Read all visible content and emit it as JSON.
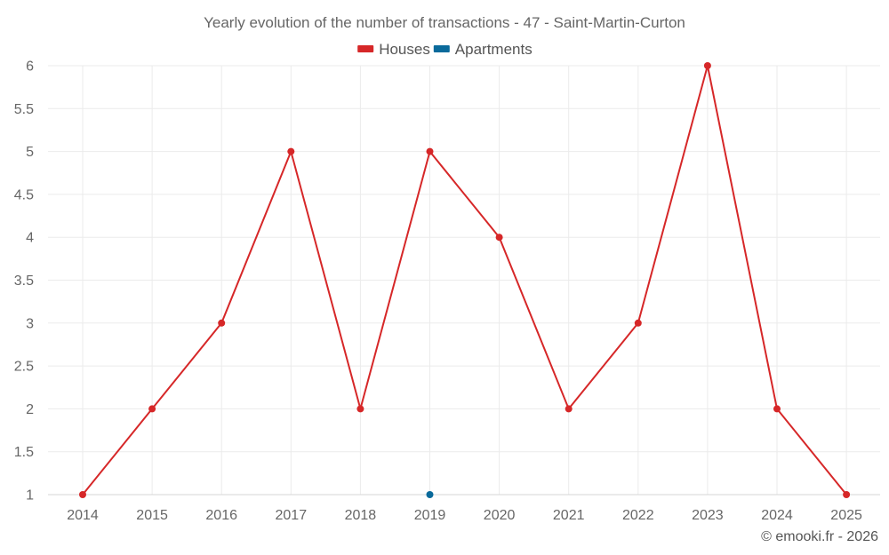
{
  "chart_data": {
    "type": "line",
    "title": "Yearly evolution of the number of transactions - 47 - Saint-Martin-Curton",
    "xlabel": "",
    "ylabel": "",
    "categories": [
      "2014",
      "2015",
      "2016",
      "2017",
      "2018",
      "2019",
      "2020",
      "2021",
      "2022",
      "2023",
      "2024",
      "2025"
    ],
    "ylim": [
      1,
      6
    ],
    "yticks": [
      "1",
      "1.5",
      "2",
      "2.5",
      "3",
      "3.5",
      "4",
      "4.5",
      "5",
      "5.5",
      "6"
    ],
    "grid": true,
    "legend_position": "top-center",
    "series": [
      {
        "name": "Houses",
        "color": "#d62728",
        "values": [
          1,
          2,
          3,
          5,
          2,
          5,
          4,
          2,
          3,
          6,
          2,
          1
        ]
      },
      {
        "name": "Apartments",
        "color": "#0a6a9b",
        "values": [
          null,
          null,
          null,
          null,
          null,
          1,
          null,
          null,
          null,
          null,
          null,
          null
        ]
      }
    ],
    "credit": "© emooki.fr - 2026"
  }
}
